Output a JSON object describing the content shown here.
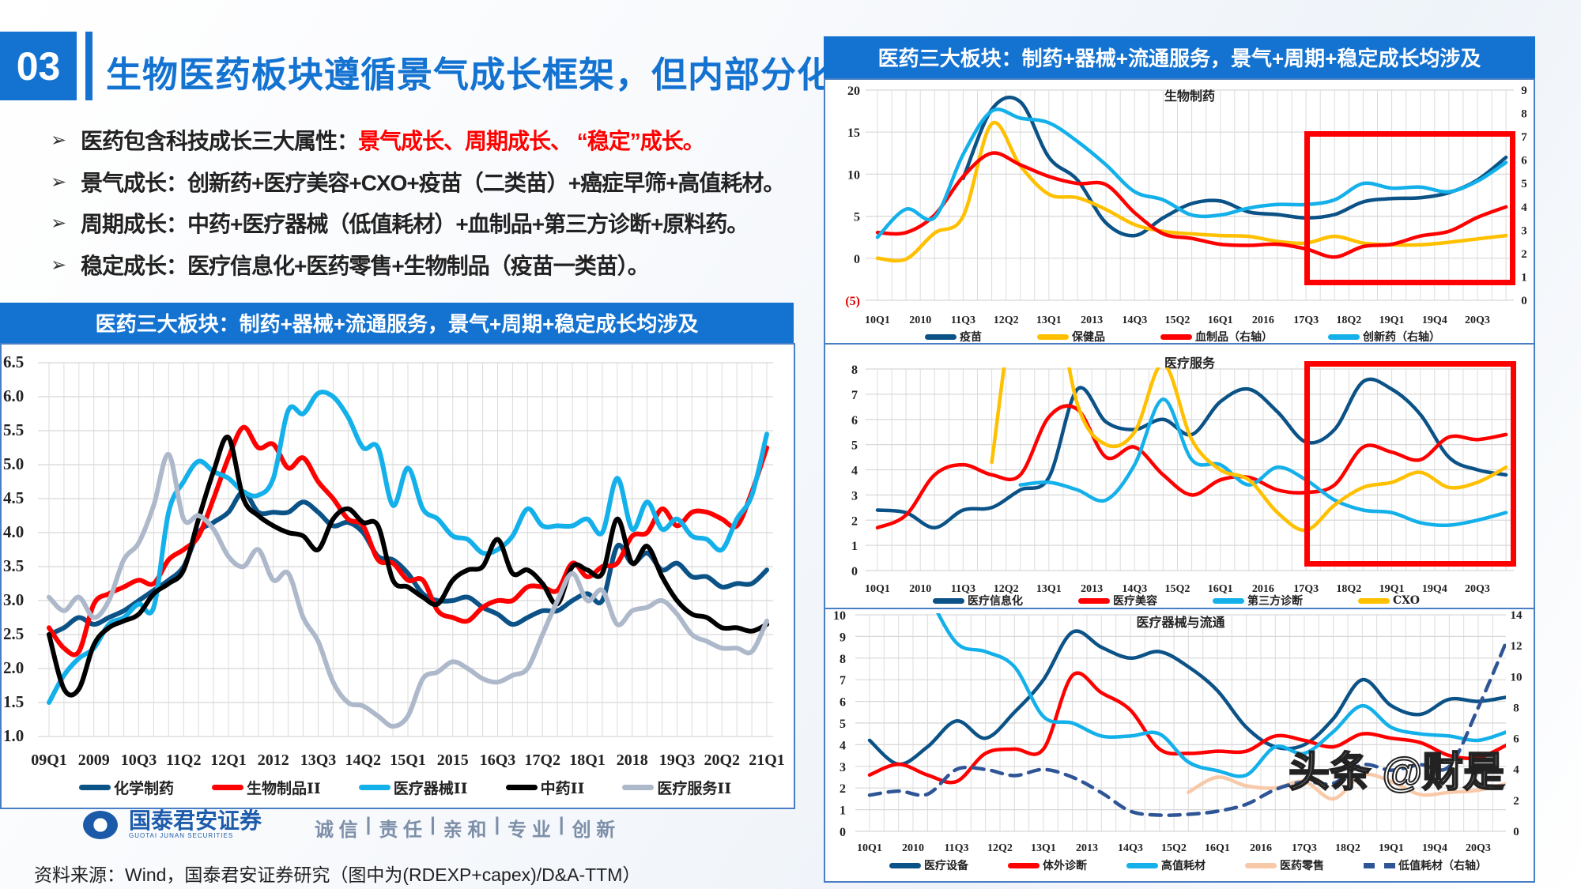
{
  "header": {
    "number": "03",
    "title": "生物医药板块遵循景气成长框架，但内部分化"
  },
  "bullets": [
    {
      "text": "医药包含科技成长三大属性：",
      "highlight": "景气成长、周期成长、 “稳定”成长。"
    },
    {
      "text": "景气成长：创新药+医疗美容+CXO+疫苗（二类苗）+癌症早筛+高值耗材。",
      "highlight": ""
    },
    {
      "text": "周期成长：中药+医疗器械（低值耗材）+血制品+第三方诊断+原料药。",
      "highlight": ""
    },
    {
      "text": "稳定成长：医疗信息化+医药零售+生物制品（疫苗一类苗）。",
      "highlight": ""
    }
  ],
  "left_banner": "医药三大板块：制药+器械+流通服务，景气+周期+稳定成长均涉及",
  "right_banner": "医药三大板块：制药+器械+流通服务，景气+周期+稳定成长均涉及",
  "colors": {
    "accent": "#1473d1",
    "highlight": "#ff0000"
  },
  "chart_data": [
    {
      "type": "line",
      "title": "",
      "x": [
        "09Q1",
        "09Q2",
        "09Q3",
        "09Q4",
        "10Q1",
        "10Q2",
        "10Q3",
        "10Q4",
        "11Q1",
        "11Q2",
        "11Q3",
        "11Q4",
        "12Q1",
        "12Q2",
        "12Q3",
        "12Q4",
        "13Q1",
        "13Q2",
        "13Q3",
        "13Q4",
        "14Q1",
        "14Q2",
        "14Q3",
        "14Q4",
        "15Q1",
        "15Q2",
        "15Q3",
        "15Q4",
        "16Q1",
        "16Q2",
        "16Q3",
        "16Q4",
        "17Q1",
        "17Q2",
        "17Q3",
        "17Q4",
        "18Q1",
        "18Q2",
        "18Q3",
        "18Q4",
        "19Q1",
        "19Q2",
        "19Q3",
        "19Q4",
        "20Q1",
        "20Q2",
        "20Q3",
        "20Q4",
        "21Q1"
      ],
      "x_tick_labels": [
        "09Q1",
        "2009",
        "10Q3",
        "11Q2",
        "12Q1",
        "2012",
        "13Q3",
        "14Q2",
        "15Q1",
        "2015",
        "16Q3",
        "17Q2",
        "18Q1",
        "2018",
        "19Q3",
        "20Q2",
        "21Q1"
      ],
      "y_left": {
        "min": 1.0,
        "max": 6.5,
        "tick_labels": [
          "1.0",
          "1.5",
          "2.0",
          "2.5",
          "3.0",
          "3.5",
          "4.0",
          "4.5",
          "5.0",
          "5.5",
          "6.0",
          "6.5"
        ]
      },
      "grid": true,
      "legend": "bottom",
      "series": [
        {
          "name": "化学制药",
          "axis": "left",
          "color": "#0b5287",
          "values": [
            2.5,
            2.6,
            2.75,
            2.65,
            2.75,
            2.85,
            3.0,
            3.15,
            3.3,
            3.5,
            4.0,
            4.15,
            4.3,
            4.6,
            4.3,
            4.3,
            4.3,
            4.45,
            4.3,
            4.1,
            4.15,
            4.0,
            3.65,
            3.6,
            3.4,
            3.1,
            3.0,
            3.0,
            3.05,
            2.9,
            2.8,
            2.65,
            2.75,
            2.85,
            2.85,
            3.0,
            3.1,
            3.0,
            3.8,
            3.55,
            3.7,
            3.45,
            3.55,
            3.35,
            3.35,
            3.2,
            3.25,
            3.25,
            3.45
          ]
        },
        {
          "name": "生物制品II",
          "axis": "left",
          "color": "#ff0000",
          "values": [
            2.6,
            2.3,
            2.25,
            2.95,
            3.1,
            3.2,
            3.3,
            3.25,
            3.6,
            3.75,
            3.95,
            4.5,
            5.1,
            5.55,
            5.25,
            5.3,
            4.95,
            5.1,
            4.75,
            4.5,
            4.2,
            4.1,
            3.6,
            3.55,
            3.3,
            3.3,
            2.85,
            2.75,
            2.7,
            2.9,
            3.0,
            3.0,
            3.2,
            3.2,
            3.15,
            3.55,
            3.35,
            3.5,
            3.55,
            3.95,
            4.0,
            4.35,
            4.1,
            4.3,
            4.3,
            4.2,
            4.1,
            4.6,
            5.25
          ]
        },
        {
          "name": "医疗器械II",
          "axis": "left",
          "color": "#14b0ea",
          "values": [
            1.5,
            1.9,
            2.15,
            2.3,
            2.65,
            2.75,
            2.95,
            2.9,
            4.3,
            4.75,
            5.05,
            4.9,
            4.8,
            4.6,
            4.55,
            4.8,
            5.8,
            5.75,
            6.05,
            6.0,
            5.7,
            5.25,
            5.25,
            4.4,
            4.95,
            4.35,
            4.2,
            3.95,
            3.9,
            3.7,
            3.75,
            3.95,
            4.35,
            4.1,
            4.1,
            4.1,
            4.2,
            4.0,
            4.8,
            4.05,
            4.45,
            4.05,
            4.2,
            3.95,
            3.9,
            3.75,
            4.2,
            4.55,
            5.45
          ]
        },
        {
          "name": "中药II",
          "axis": "left",
          "color": "#000000",
          "values": [
            2.5,
            1.7,
            1.7,
            2.35,
            2.6,
            2.7,
            2.8,
            3.1,
            3.25,
            3.45,
            4.2,
            4.9,
            5.4,
            4.5,
            4.25,
            4.1,
            4.0,
            3.95,
            3.75,
            4.2,
            4.35,
            4.15,
            4.1,
            3.3,
            3.2,
            3.05,
            2.95,
            3.3,
            3.45,
            3.5,
            3.9,
            3.4,
            3.45,
            3.25,
            2.95,
            3.5,
            3.45,
            3.4,
            4.2,
            3.55,
            3.8,
            3.35,
            3.0,
            2.8,
            2.75,
            2.6,
            2.6,
            2.55,
            2.65
          ]
        },
        {
          "name": "医疗服务II",
          "axis": "left",
          "color": "#adb9ca",
          "values": [
            3.05,
            2.85,
            3.05,
            2.75,
            3.0,
            3.6,
            3.85,
            4.4,
            5.15,
            4.2,
            4.25,
            4.05,
            3.65,
            3.5,
            3.75,
            3.3,
            3.4,
            2.75,
            2.4,
            1.8,
            1.5,
            1.45,
            1.3,
            1.15,
            1.3,
            1.85,
            1.95,
            2.1,
            2.0,
            1.85,
            1.8,
            1.9,
            2.0,
            2.5,
            3.0,
            3.4,
            3.0,
            3.15,
            2.65,
            2.85,
            2.9,
            3.0,
            2.8,
            2.5,
            2.4,
            2.3,
            2.3,
            2.25,
            2.7
          ]
        }
      ]
    },
    {
      "type": "line",
      "title": "生物制药",
      "x": [
        "10Q1",
        "10Q3",
        "11Q1",
        "11Q3",
        "12Q1",
        "12Q3",
        "13Q1",
        "13Q3",
        "14Q1",
        "14Q3",
        "15Q1",
        "15Q3",
        "16Q1",
        "16Q3",
        "17Q1",
        "17Q3",
        "18Q1",
        "18Q3",
        "19Q1",
        "19Q3",
        "20Q1",
        "20Q3",
        "21Q1"
      ],
      "x_tick_labels": [
        "10Q1",
        "2010",
        "11Q3",
        "12Q2",
        "13Q1",
        "2013",
        "14Q3",
        "15Q2",
        "16Q1",
        "2016",
        "17Q3",
        "18Q2",
        "19Q1",
        "19Q4",
        "20Q3"
      ],
      "y_left": {
        "min": -5,
        "max": 20,
        "tick_labels": [
          "(5)",
          "0",
          "5",
          "10",
          "15",
          "20"
        ]
      },
      "y_right": {
        "min": 0,
        "max": 9,
        "tick_labels": [
          "0",
          "1",
          "2",
          "3",
          "4",
          "5",
          "6",
          "7",
          "8",
          "9"
        ]
      },
      "grid": true,
      "legend": "bottom",
      "series": [
        {
          "name": "疫苗",
          "axis": "left",
          "color": "#0b5287",
          "values": [
            null,
            null,
            null,
            9.5,
            17.7,
            18.6,
            12,
            9.3,
            4.2,
            2.7,
            4.8,
            6.5,
            6.8,
            5.5,
            5.2,
            4.8,
            5.2,
            6.7,
            7.1,
            7.2,
            7.8,
            9.3,
            12
          ]
        },
        {
          "name": "保健品",
          "axis": "left",
          "color": "#ffc000",
          "values": [
            0,
            -0.1,
            3,
            5,
            16,
            11,
            7.6,
            7.2,
            5.8,
            4,
            3.2,
            2.9,
            2.7,
            2.6,
            2.0,
            1.8,
            2.6,
            1.8,
            1.6,
            1.6,
            1.9,
            2.3,
            2.7
          ]
        },
        {
          "name": "血制品（右轴）",
          "axis": "right",
          "color": "#ff0000",
          "values": [
            2.9,
            2.9,
            3.65,
            5.3,
            6.3,
            5.8,
            5.3,
            5.0,
            4.95,
            3.75,
            2.85,
            2.65,
            2.4,
            2.35,
            2.4,
            2.2,
            1.85,
            2.3,
            2.4,
            2.75,
            2.95,
            3.55,
            4.0
          ]
        },
        {
          "name": "创新药（右轴）",
          "axis": "right",
          "color": "#14b0ea",
          "values": [
            2.7,
            3.9,
            3.55,
            6.25,
            8.1,
            7.8,
            7.6,
            6.8,
            5.8,
            4.65,
            4.3,
            3.65,
            3.65,
            3.95,
            4.1,
            4.1,
            4.3,
            5.0,
            4.8,
            4.85,
            4.65,
            5.1,
            5.9
          ]
        }
      ]
    },
    {
      "type": "line",
      "title": "医疗服务",
      "x": [
        "10Q1",
        "10Q3",
        "11Q1",
        "11Q3",
        "12Q1",
        "12Q3",
        "13Q1",
        "13Q3",
        "14Q1",
        "14Q3",
        "15Q1",
        "15Q3",
        "16Q1",
        "16Q3",
        "17Q1",
        "17Q3",
        "18Q1",
        "18Q3",
        "19Q1",
        "19Q3",
        "20Q1",
        "20Q3",
        "21Q1"
      ],
      "x_tick_labels": [
        "10Q1",
        "2010",
        "11Q3",
        "12Q2",
        "13Q1",
        "2013",
        "14Q3",
        "15Q2",
        "16Q1",
        "2016",
        "17Q3",
        "18Q2",
        "19Q1",
        "19Q4",
        "20Q3"
      ],
      "y_left": {
        "min": 0,
        "max": 8,
        "tick_labels": [
          "0",
          "1",
          "2",
          "3",
          "4",
          "5",
          "6",
          "7",
          "8"
        ]
      },
      "grid": true,
      "legend": "bottom",
      "series": [
        {
          "name": "医疗信息化",
          "axis": "left",
          "color": "#0b5287",
          "values": [
            2.4,
            2.3,
            1.7,
            2.4,
            2.5,
            3.2,
            3.7,
            7.2,
            5.9,
            5.6,
            6.0,
            5.4,
            6.7,
            7.2,
            6.3,
            5.1,
            5.6,
            7.5,
            7.2,
            6.2,
            4.5,
            4.0,
            3.8
          ]
        },
        {
          "name": "医疗美容",
          "axis": "left",
          "color": "#ff0000",
          "values": [
            1.7,
            2.2,
            3.8,
            4.2,
            3.8,
            3.8,
            6.1,
            6.4,
            4.5,
            4.9,
            3.8,
            3.0,
            3.6,
            3.7,
            3.2,
            3.1,
            3.4,
            4.9,
            4.7,
            4.4,
            5.3,
            5.2,
            5.4
          ]
        },
        {
          "name": "第三方诊断",
          "axis": "left",
          "color": "#14b0ea",
          "values": [
            null,
            null,
            null,
            null,
            null,
            3.4,
            3.5,
            3.2,
            2.8,
            4.2,
            6.8,
            4.4,
            4.2,
            3.4,
            4.1,
            3.6,
            2.8,
            2.4,
            2.3,
            1.9,
            1.8,
            2.0,
            2.3
          ]
        },
        {
          "name": "CXO",
          "axis": "left",
          "color": "#ffc000",
          "values": [
            null,
            null,
            null,
            null,
            4.3,
            12,
            12,
            6.6,
            5.0,
            5.5,
            8.2,
            5.2,
            4.0,
            3.6,
            2.3,
            1.6,
            2.6,
            3.3,
            3.5,
            3.9,
            3.3,
            3.5,
            4.1
          ]
        }
      ]
    },
    {
      "type": "line",
      "title": "医疗器械与流通",
      "x": [
        "10Q1",
        "10Q3",
        "11Q1",
        "11Q3",
        "12Q1",
        "12Q3",
        "13Q1",
        "13Q3",
        "14Q1",
        "14Q3",
        "15Q1",
        "15Q3",
        "16Q1",
        "16Q3",
        "17Q1",
        "17Q3",
        "18Q1",
        "18Q3",
        "19Q1",
        "19Q3",
        "20Q1",
        "20Q3",
        "21Q1"
      ],
      "x_tick_labels": [
        "10Q1",
        "2010",
        "11Q3",
        "12Q2",
        "13Q1",
        "2013",
        "14Q3",
        "15Q2",
        "16Q1",
        "2016",
        "17Q3",
        "18Q2",
        "19Q1",
        "19Q4",
        "20Q3"
      ],
      "y_left": {
        "min": 0,
        "max": 10,
        "tick_labels": [
          "0",
          "1",
          "2",
          "3",
          "4",
          "5",
          "6",
          "7",
          "8",
          "9",
          "10"
        ]
      },
      "y_right": {
        "min": 0,
        "max": 14,
        "tick_labels": [
          "0",
          "2",
          "4",
          "6",
          "8",
          "10",
          "12",
          "14"
        ]
      },
      "grid": true,
      "legend": "bottom",
      "series": [
        {
          "name": "医疗设备",
          "axis": "left",
          "color": "#0b5287",
          "values": [
            4.2,
            3.1,
            3.9,
            5.1,
            4.3,
            5.5,
            7.0,
            9.2,
            8.5,
            8.0,
            8.3,
            7.6,
            6.5,
            4.8,
            3.9,
            4.0,
            5.2,
            7.0,
            5.8,
            5.4,
            6.1,
            6.0,
            6.2
          ]
        },
        {
          "name": "体外诊断",
          "axis": "left",
          "color": "#ff0000",
          "values": [
            2.6,
            3.1,
            2.6,
            2.3,
            3.6,
            3.8,
            3.8,
            7.2,
            6.4,
            5.6,
            3.8,
            3.6,
            3.7,
            3.7,
            4.4,
            4.2,
            3.9,
            4.5,
            4.3,
            4.1,
            3.5,
            3.4,
            4.0
          ]
        },
        {
          "name": "高值耗材",
          "axis": "left",
          "color": "#14b0ea",
          "values": [
            null,
            null,
            11,
            8.7,
            8.3,
            7.6,
            5.3,
            5.0,
            4.4,
            4.4,
            4.5,
            3.2,
            2.8,
            2.6,
            3.9,
            3.6,
            4.6,
            5.8,
            4.8,
            4.5,
            4.4,
            4.2,
            4.6
          ]
        },
        {
          "name": "医药零售",
          "axis": "left",
          "color": "#f8c9a8",
          "values": [
            null,
            null,
            null,
            null,
            null,
            null,
            null,
            null,
            null,
            null,
            null,
            1.8,
            2.5,
            2.1,
            2.0,
            2.3,
            1.5,
            2.6,
            2.3,
            1.7,
            1.8,
            1.9,
            2.2
          ]
        },
        {
          "name": "低值耗材（右轴）",
          "axis": "right",
          "color": "#2f5597",
          "dashed": true,
          "values": [
            2.34,
            2.6,
            2.4,
            4.0,
            4.0,
            3.6,
            4.0,
            3.5,
            2.5,
            1.3,
            1.05,
            1.1,
            1.3,
            1.75,
            2.7,
            3.2,
            3.1,
            4.3,
            3.95,
            4.3,
            4.2,
            8.0,
            12.4
          ]
        }
      ]
    }
  ],
  "logo": {
    "name_cn": "国泰君安证券",
    "name_en": "GUOTAI JUNAN SECURITIES",
    "slogan": [
      "诚 信",
      "责 任",
      "亲 和",
      "专 业",
      "创 新"
    ]
  },
  "source": "资料来源：Wind，国泰君安证券研究（图中为(RDEXP+capex)/D&A-TTM）",
  "watermark": "头条 @财是"
}
